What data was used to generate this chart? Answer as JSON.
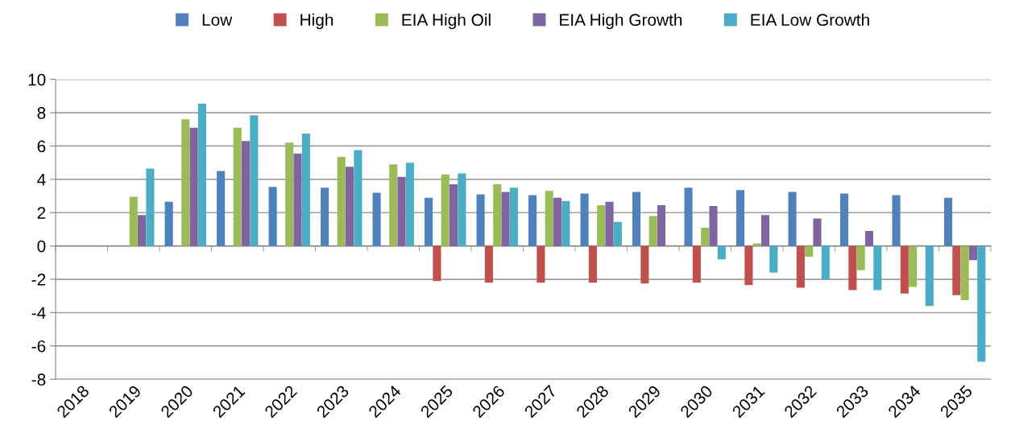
{
  "chart_data": {
    "type": "bar",
    "categories": [
      "2018",
      "2019",
      "2020",
      "2021",
      "2022",
      "2023",
      "2024",
      "2025",
      "2026",
      "2027",
      "2028",
      "2029",
      "2030",
      "2031",
      "2032",
      "2033",
      "2034",
      "2035"
    ],
    "series": [
      {
        "name": "Low",
        "color": "#4f81bd",
        "values": [
          null,
          null,
          2.65,
          4.5,
          3.55,
          3.5,
          3.2,
          2.9,
          3.1,
          3.05,
          3.15,
          3.25,
          3.5,
          3.35,
          3.25,
          3.15,
          3.05,
          2.9
        ]
      },
      {
        "name": "High",
        "color": "#c0504d",
        "values": [
          null,
          null,
          null,
          null,
          null,
          null,
          null,
          -2.1,
          -2.2,
          -2.2,
          -2.2,
          -2.25,
          -2.2,
          -2.35,
          -2.5,
          -2.65,
          -2.85,
          -2.95
        ]
      },
      {
        "name": "EIA High Oil",
        "color": "#9bbb59",
        "values": [
          null,
          2.95,
          7.6,
          7.1,
          6.2,
          5.35,
          4.9,
          4.3,
          3.7,
          3.3,
          2.45,
          1.8,
          1.1,
          0.15,
          -0.65,
          -1.45,
          -2.45,
          -3.25
        ]
      },
      {
        "name": "EIA High Growth",
        "color": "#8064a2",
        "values": [
          null,
          1.85,
          7.1,
          6.3,
          5.55,
          4.75,
          4.15,
          3.7,
          3.25,
          2.9,
          2.65,
          2.45,
          2.4,
          1.85,
          1.65,
          0.9,
          null,
          -0.85
        ]
      },
      {
        "name": "EIA Low Growth",
        "color": "#4bacc6",
        "values": [
          null,
          4.65,
          8.55,
          7.85,
          6.75,
          5.75,
          5.0,
          4.35,
          3.5,
          2.7,
          1.45,
          null,
          -0.8,
          -1.6,
          -2.0,
          -2.65,
          -3.6,
          -6.95
        ]
      }
    ],
    "ylim": [
      -8,
      10
    ],
    "yticks": [
      -8,
      -6,
      -4,
      -2,
      0,
      2,
      4,
      6,
      8,
      10
    ],
    "grid": "y",
    "legend": "top"
  }
}
